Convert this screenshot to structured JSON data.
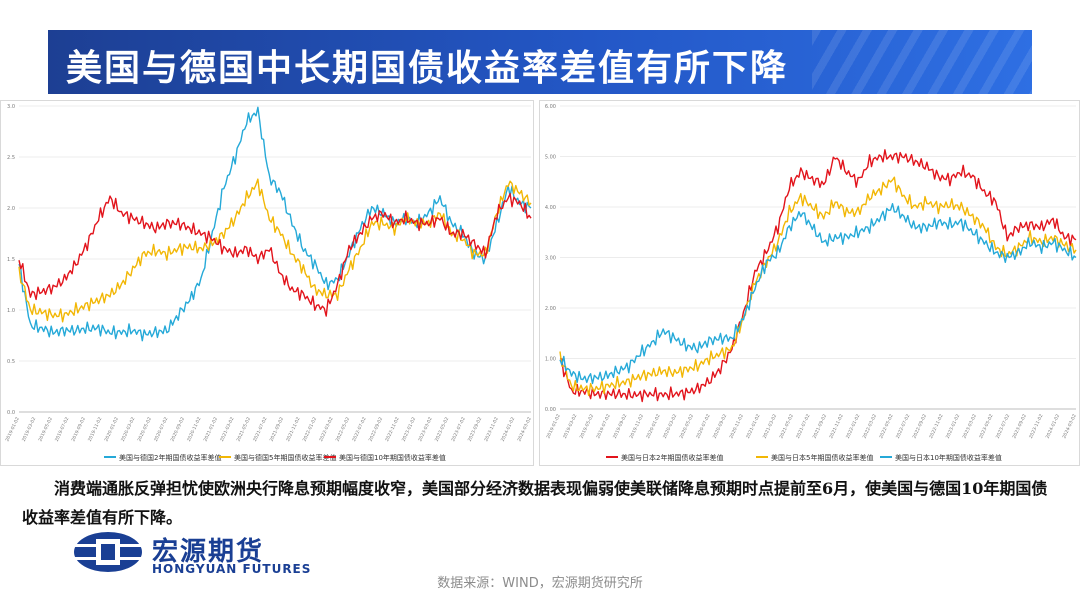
{
  "title": "美国与德国中长期国债收益率差值有所下降",
  "note": "消费端通胀反弹担忧使欧洲央行降息预期幅度收窄，美国部分经济数据表现偏弱使美联储降息预期时点提前至6月，使美国与德国10年期国债收益率差值有所下降。",
  "logo": {
    "cn": "宏源期货",
    "en": "HONGYUAN FUTURES"
  },
  "source": "数据来源：WIND，宏源期货研究所",
  "chart_data": [
    {
      "type": "line",
      "title": "",
      "ylim": [
        0,
        3
      ],
      "yticks": [
        "3.0",
        "2.5",
        "2.0",
        "1.5",
        "1.0",
        "0.5",
        "0.0"
      ],
      "xticks": [
        "2019-01-02",
        "2019-03-02",
        "2019-05-02",
        "2019-07-02",
        "2019-09-02",
        "2019-11-02",
        "2020-01-02",
        "2020-03-02",
        "2020-05-02",
        "2020-07-02",
        "2020-09-02",
        "2020-11-02",
        "2021-01-02",
        "2021-03-02",
        "2021-05-02",
        "2021-07-02",
        "2021-09-02",
        "2021-11-02",
        "2022-01-02",
        "2022-03-02",
        "2022-05-02",
        "2022-07-02",
        "2022-09-02",
        "2022-11-02",
        "2023-01-02",
        "2023-03-02",
        "2023-05-02",
        "2023-07-02",
        "2023-09-02",
        "2023-11-02",
        "2024-01-02",
        "2024-03-02"
      ],
      "legend_position": "bottom",
      "series": [
        {
          "name": "美国与德国2年期国债收益率差值",
          "color": "#25a9d8",
          "values": [
            1.45,
            0.85,
            0.82,
            0.78,
            0.8,
            0.8,
            0.82,
            0.82,
            0.78,
            0.78,
            0.8,
            0.76,
            0.78,
            0.8,
            0.95,
            1.1,
            1.3,
            1.75,
            2.2,
            2.5,
            2.85,
            2.95,
            2.3,
            2.15,
            1.85,
            1.6,
            1.45,
            1.25,
            1.3,
            1.55,
            1.8,
            2.0,
            1.95,
            1.85,
            1.9,
            1.85,
            1.95,
            2.1,
            1.85,
            1.75,
            1.55,
            1.5,
            1.85,
            2.2,
            2.05,
            2.0
          ]
        },
        {
          "name": "美国与德国5年期国债收益率差值",
          "color": "#f2b705",
          "values": [
            1.38,
            1.0,
            0.98,
            0.95,
            0.95,
            1.0,
            1.05,
            1.1,
            1.15,
            1.25,
            1.4,
            1.55,
            1.58,
            1.55,
            1.6,
            1.62,
            1.6,
            1.65,
            1.75,
            1.9,
            2.1,
            2.25,
            1.9,
            1.75,
            1.55,
            1.4,
            1.2,
            1.15,
            1.15,
            1.4,
            1.6,
            1.85,
            1.85,
            1.8,
            1.9,
            1.85,
            1.85,
            1.95,
            1.75,
            1.7,
            1.55,
            1.55,
            1.95,
            2.25,
            2.15,
            2.05
          ]
        },
        {
          "name": "美国与德国10年期国债收益率差值",
          "color": "#e2141c",
          "values": [
            1.5,
            1.15,
            1.18,
            1.22,
            1.3,
            1.45,
            1.65,
            1.9,
            2.1,
            1.95,
            1.9,
            1.85,
            1.8,
            1.85,
            1.85,
            1.8,
            1.75,
            1.7,
            1.6,
            1.55,
            1.6,
            1.5,
            1.6,
            1.35,
            1.2,
            1.15,
            1.05,
            1.0,
            1.25,
            1.6,
            1.75,
            1.9,
            1.95,
            1.85,
            1.9,
            1.85,
            1.85,
            1.9,
            1.75,
            1.75,
            1.65,
            1.55,
            1.95,
            2.1,
            2.05,
            1.9
          ]
        }
      ]
    },
    {
      "type": "line",
      "title": "",
      "ylim": [
        0,
        6
      ],
      "yticks": [
        "6.00",
        "5.00",
        "4.00",
        "3.00",
        "2.00",
        "1.00",
        "0.00"
      ],
      "xticks": [
        "2019-01-02",
        "2019-03-02",
        "2019-05-02",
        "2019-07-02",
        "2019-09-02",
        "2019-11-02",
        "2020-01-02",
        "2020-03-02",
        "2020-05-02",
        "2020-07-02",
        "2020-09-02",
        "2020-11-02",
        "2021-01-02",
        "2021-03-02",
        "2021-05-02",
        "2021-07-02",
        "2021-09-02",
        "2021-11-02",
        "2022-01-02",
        "2022-03-02",
        "2022-05-02",
        "2022-07-02",
        "2022-09-02",
        "2022-11-02",
        "2023-01-02",
        "2023-03-02",
        "2023-05-02",
        "2023-07-02",
        "2023-09-02",
        "2023-11-02",
        "2024-01-02",
        "2024-03-02"
      ],
      "legend_position": "bottom",
      "series": [
        {
          "name": "美国与日本2年期国债收益率差值",
          "color": "#e2141c",
          "values": [
            1.0,
            0.35,
            0.35,
            0.3,
            0.3,
            0.3,
            0.28,
            0.28,
            0.3,
            0.28,
            0.3,
            0.32,
            0.4,
            0.55,
            0.8,
            1.2,
            1.9,
            2.7,
            3.1,
            3.6,
            4.4,
            4.7,
            4.55,
            4.45,
            5.0,
            4.7,
            4.5,
            4.9,
            5.0,
            5.0,
            5.0,
            4.9,
            4.8,
            4.6,
            4.55,
            4.7,
            4.6,
            4.3,
            4.1,
            3.4,
            3.6,
            3.65,
            3.6,
            3.75,
            3.4,
            3.35
          ]
        },
        {
          "name": "美国与日本5年期国债收益率差值",
          "color": "#f2b705",
          "values": [
            1.05,
            0.45,
            0.4,
            0.4,
            0.45,
            0.5,
            0.55,
            0.65,
            0.7,
            0.75,
            0.72,
            0.78,
            0.85,
            1.0,
            1.1,
            1.2,
            1.8,
            2.5,
            2.9,
            3.3,
            3.9,
            4.2,
            4.0,
            3.8,
            4.1,
            3.9,
            3.9,
            4.2,
            4.35,
            4.55,
            4.2,
            4.0,
            4.1,
            4.0,
            4.05,
            4.0,
            3.8,
            3.6,
            3.2,
            3.05,
            3.2,
            3.4,
            3.3,
            3.4,
            3.25,
            3.15
          ]
        },
        {
          "name": "美国与日本10年期国债收益率差值",
          "color": "#25a9d8",
          "values": [
            1.0,
            0.7,
            0.6,
            0.62,
            0.65,
            0.75,
            0.85,
            1.1,
            1.3,
            1.55,
            1.4,
            1.25,
            1.2,
            1.35,
            1.4,
            1.4,
            1.8,
            2.4,
            2.9,
            3.1,
            3.6,
            3.9,
            3.6,
            3.3,
            3.4,
            3.4,
            3.5,
            3.6,
            3.8,
            4.0,
            3.8,
            3.6,
            3.6,
            3.7,
            3.65,
            3.7,
            3.5,
            3.3,
            3.1,
            3.0,
            3.1,
            3.3,
            3.2,
            3.3,
            3.15,
            3.0
          ]
        }
      ]
    }
  ]
}
